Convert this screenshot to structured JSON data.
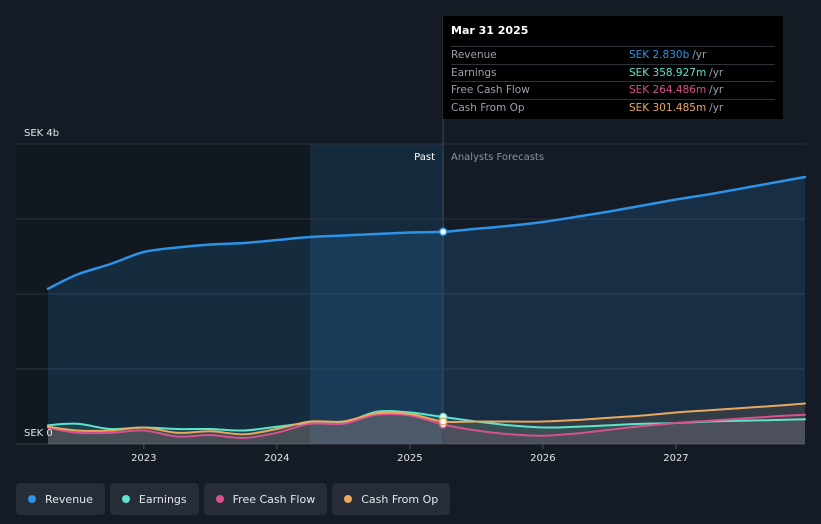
{
  "chart_data": {
    "type": "area",
    "currency_unit": "SEK b",
    "y_axis_labels": {
      "top": "SEK 4b",
      "bottom": "SEK 0"
    },
    "ylim": [
      0,
      4
    ],
    "xlim": [
      2022.28,
      2027.97
    ],
    "x_ticks": [
      2023,
      2024,
      2025,
      2026,
      2027
    ],
    "x_tick_labels": [
      "2023",
      "2024",
      "2025",
      "2026",
      "2027"
    ],
    "gridlines": [
      0,
      1,
      2,
      3,
      4
    ],
    "past_label": "Past",
    "forecast_label": "Analysts Forecasts",
    "divider_x": 2025.25,
    "shade_start_x": 2024.25,
    "series": [
      {
        "name": "Revenue",
        "color": "#2c93e8",
        "x": [
          2022.28,
          2022.5,
          2022.75,
          2023.0,
          2023.25,
          2023.5,
          2023.75,
          2024.0,
          2024.25,
          2024.5,
          2024.75,
          2025.0,
          2025.25,
          2025.5,
          2025.75,
          2026.0,
          2026.25,
          2026.5,
          2026.75,
          2027.0,
          2027.25,
          2027.5,
          2027.75,
          2027.97
        ],
        "values": [
          2.07,
          2.26,
          2.4,
          2.56,
          2.62,
          2.66,
          2.68,
          2.72,
          2.76,
          2.78,
          2.8,
          2.82,
          2.83,
          2.87,
          2.91,
          2.96,
          3.03,
          3.1,
          3.18,
          3.26,
          3.33,
          3.41,
          3.49,
          3.56
        ]
      },
      {
        "name": "Earnings",
        "color": "#5ee3cc",
        "x": [
          2022.28,
          2022.5,
          2022.75,
          2023.0,
          2023.25,
          2023.5,
          2023.75,
          2024.0,
          2024.25,
          2024.5,
          2024.75,
          2025.0,
          2025.25,
          2025.5,
          2025.75,
          2026.0,
          2026.25,
          2026.5,
          2026.75,
          2027.0,
          2027.25,
          2027.5,
          2027.75,
          2027.97
        ],
        "values": [
          0.25,
          0.27,
          0.2,
          0.22,
          0.2,
          0.2,
          0.18,
          0.23,
          0.28,
          0.28,
          0.43,
          0.42,
          0.36,
          0.3,
          0.25,
          0.22,
          0.23,
          0.25,
          0.27,
          0.28,
          0.3,
          0.31,
          0.32,
          0.33
        ]
      },
      {
        "name": "Free Cash Flow",
        "color": "#d8508e",
        "x": [
          2022.28,
          2022.5,
          2022.75,
          2023.0,
          2023.25,
          2023.5,
          2023.75,
          2024.0,
          2024.25,
          2024.5,
          2024.75,
          2025.0,
          2025.25,
          2025.5,
          2025.75,
          2026.0,
          2026.25,
          2026.5,
          2026.75,
          2027.0,
          2027.25,
          2027.5,
          2027.75,
          2027.97
        ],
        "values": [
          0.22,
          0.15,
          0.15,
          0.18,
          0.1,
          0.12,
          0.08,
          0.15,
          0.27,
          0.27,
          0.39,
          0.38,
          0.26,
          0.18,
          0.13,
          0.11,
          0.14,
          0.19,
          0.24,
          0.28,
          0.31,
          0.34,
          0.37,
          0.39
        ]
      },
      {
        "name": "Cash From Op",
        "color": "#e8a85e",
        "x": [
          2022.28,
          2022.5,
          2022.75,
          2023.0,
          2023.25,
          2023.5,
          2023.75,
          2024.0,
          2024.25,
          2024.5,
          2024.75,
          2025.0,
          2025.25,
          2025.5,
          2025.75,
          2026.0,
          2026.25,
          2026.5,
          2026.75,
          2027.0,
          2027.25,
          2027.5,
          2027.75,
          2027.97
        ],
        "values": [
          0.23,
          0.18,
          0.18,
          0.22,
          0.15,
          0.17,
          0.13,
          0.2,
          0.3,
          0.3,
          0.41,
          0.4,
          0.3,
          0.3,
          0.3,
          0.3,
          0.32,
          0.35,
          0.38,
          0.42,
          0.45,
          0.48,
          0.51,
          0.54
        ]
      }
    ],
    "tooltip": {
      "date": "Mar 31 2025",
      "unit": "/yr",
      "rows": [
        {
          "label": "Revenue",
          "value": "SEK 2.830b",
          "color": "#2c93e8"
        },
        {
          "label": "Earnings",
          "value": "SEK 358.927m",
          "color": "#5ee3cc"
        },
        {
          "label": "Free Cash Flow",
          "value": "SEK 264.486m",
          "color": "#d8508e"
        },
        {
          "label": "Cash From Op",
          "value": "SEK 301.485m",
          "color": "#e8a85e"
        }
      ]
    },
    "legend": [
      {
        "label": "Revenue",
        "color": "#2c93e8"
      },
      {
        "label": "Earnings",
        "color": "#5ee3cc"
      },
      {
        "label": "Free Cash Flow",
        "color": "#d8508e"
      },
      {
        "label": "Cash From Op",
        "color": "#e8a85e"
      }
    ]
  }
}
